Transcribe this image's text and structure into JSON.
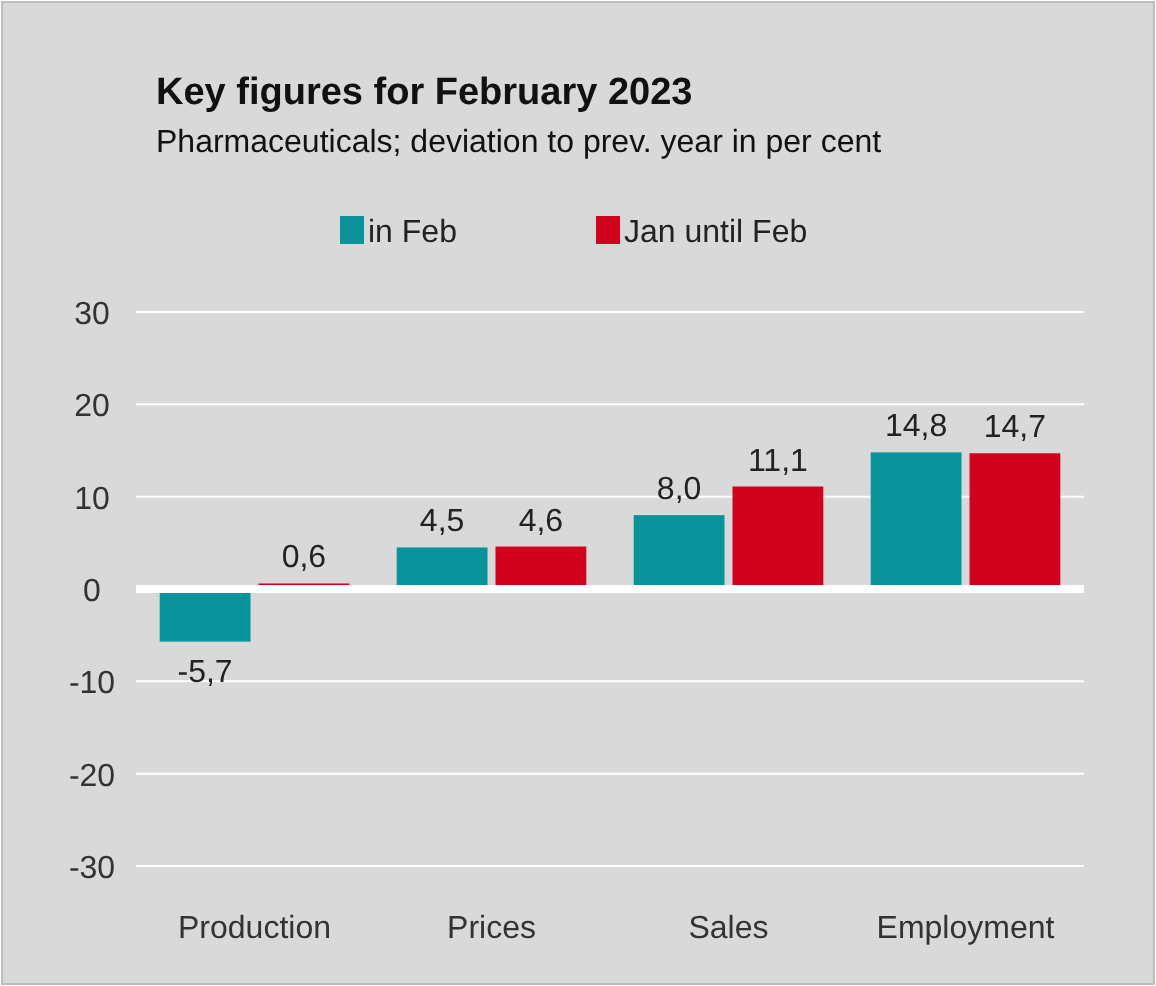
{
  "chart_data": {
    "type": "bar",
    "title": "Key figures for February 2023",
    "subtitle": "Pharmaceuticals; deviation to prev. year in per cent",
    "categories": [
      "Production",
      "Prices",
      "Sales",
      "Employment"
    ],
    "series": [
      {
        "name": "in Feb",
        "color": "#0b939b",
        "values": [
          -5.7,
          4.5,
          8.0,
          14.8
        ],
        "value_labels": [
          "-5,7",
          "4,5",
          "8,0",
          "14,8"
        ]
      },
      {
        "name": "Jan until Feb",
        "color": "#d0021e",
        "values": [
          0.6,
          4.6,
          11.1,
          14.7
        ],
        "value_labels": [
          "0,6",
          "4,6",
          "11,1",
          "14,7"
        ]
      }
    ],
    "ylim": [
      -30,
      30
    ],
    "yticks": [
      -30,
      -20,
      -10,
      0,
      10,
      20,
      30
    ],
    "grid": "y",
    "legend": "top"
  }
}
